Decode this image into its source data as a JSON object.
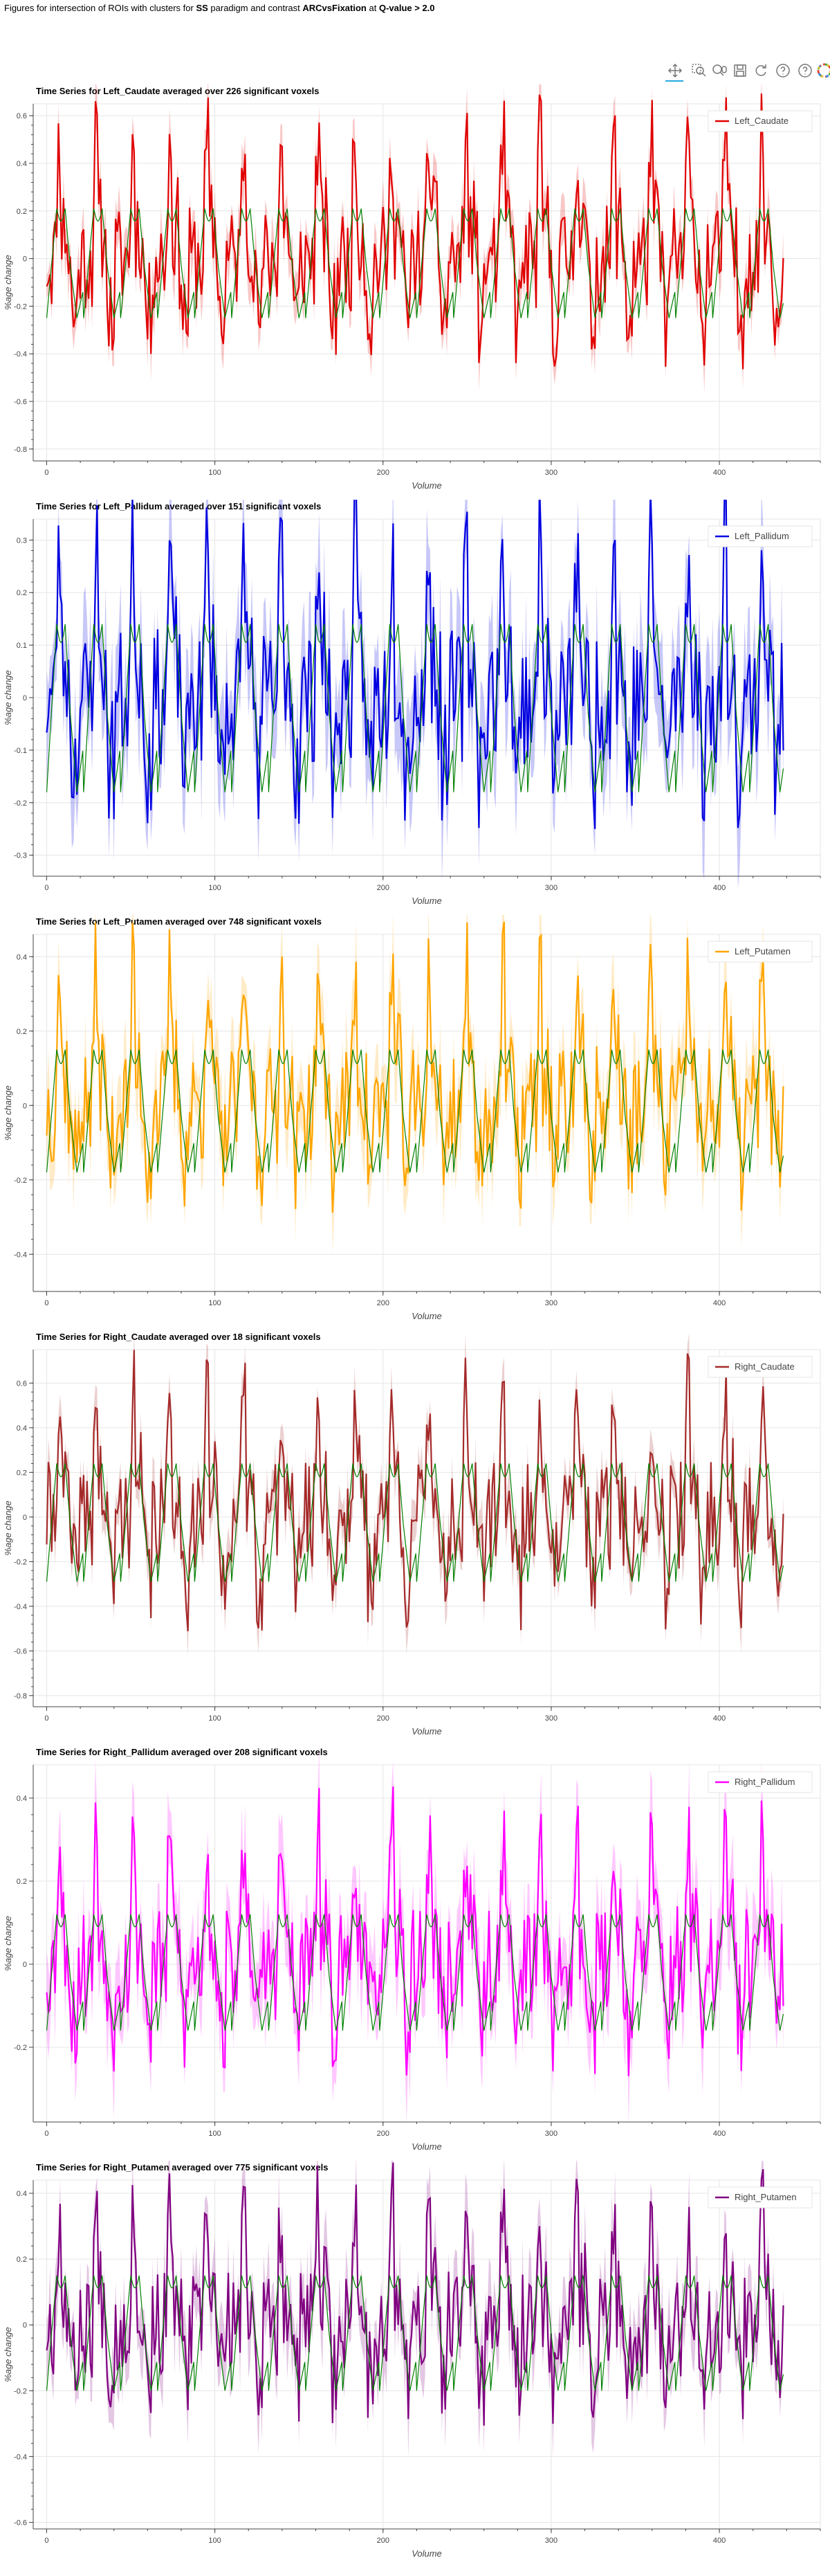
{
  "header": {
    "prefix": "Figures for intersection of ROIs with clusters for",
    "paradigm": "SS",
    "middle": "paradigm and contrast",
    "contrast": "ARCvsFixation",
    "at": "at",
    "qvalue": "Q-value > 2.0"
  },
  "toolbar": {
    "icons": [
      "pan-icon",
      "box-zoom-icon",
      "wheel-zoom-icon",
      "save-icon",
      "reset-icon",
      "help-icon",
      "help-icon",
      "bokeh-logo-icon"
    ]
  },
  "model_color": "#008000",
  "chart_data": [
    {
      "type": "line",
      "title": "Time Series for Left_Caudate averaged over 226 significant voxels",
      "xlabel": "Volume",
      "ylabel": "%age change",
      "xlim": [
        -8,
        460
      ],
      "ylim": [
        -0.85,
        0.65
      ],
      "xticks": [
        0,
        100,
        200,
        300,
        400
      ],
      "yticks": [
        -0.8,
        -0.6,
        -0.4,
        -0.2,
        0,
        0.2,
        0.4,
        0.6
      ],
      "legend": "top-right",
      "grid": true,
      "color": "#e00000",
      "series": [
        {
          "name": "Left_Caudate",
          "x_range": [
            0,
            438
          ],
          "amplitude": 0.5,
          "min": -0.4,
          "seed": 11
        }
      ],
      "model": {
        "x_range": [
          0,
          438
        ],
        "peak": 0.21,
        "trough": -0.25
      }
    },
    {
      "type": "line",
      "title": "Time Series for Left_Pallidum averaged over 151 significant voxels",
      "xlabel": "Volume",
      "ylabel": "%age change",
      "xlim": [
        -8,
        460
      ],
      "ylim": [
        -0.34,
        0.34
      ],
      "xticks": [
        0,
        100,
        200,
        300,
        400
      ],
      "yticks": [
        -0.3,
        -0.2,
        -0.1,
        0,
        0.1,
        0.2,
        0.3
      ],
      "legend": "top-right",
      "grid": true,
      "color": "#0000e0",
      "series": [
        {
          "name": "Left_Pallidum",
          "x_range": [
            0,
            438
          ],
          "amplitude": 0.29,
          "min": -0.2,
          "seed": 23
        }
      ],
      "model": {
        "x_range": [
          0,
          438
        ],
        "peak": 0.14,
        "trough": -0.18
      }
    },
    {
      "type": "line",
      "title": "Time Series for Left_Putamen averaged over 748 significant voxels",
      "xlabel": "Volume",
      "ylabel": "%age change",
      "xlim": [
        -8,
        460
      ],
      "ylim": [
        -0.5,
        0.46
      ],
      "xticks": [
        0,
        100,
        200,
        300,
        400
      ],
      "yticks": [
        -0.4,
        -0.2,
        0,
        0.2,
        0.4
      ],
      "legend": "top-right",
      "grid": true,
      "color": "#ffa500",
      "series": [
        {
          "name": "Left_Putamen",
          "x_range": [
            0,
            438
          ],
          "amplitude": 0.36,
          "min": -0.22,
          "seed": 37
        }
      ],
      "model": {
        "x_range": [
          0,
          438
        ],
        "peak": 0.15,
        "trough": -0.18
      }
    },
    {
      "type": "line",
      "title": "Time Series for Right_Caudate averaged over 18 significant voxels",
      "xlabel": "Volume",
      "ylabel": "%age change",
      "xlim": [
        -8,
        460
      ],
      "ylim": [
        -0.85,
        0.75
      ],
      "xticks": [
        0,
        100,
        200,
        300,
        400
      ],
      "yticks": [
        -0.8,
        -0.6,
        -0.4,
        -0.2,
        0,
        0.2,
        0.4,
        0.6
      ],
      "legend": "top-right",
      "grid": true,
      "color": "#a52a2a",
      "series": [
        {
          "name": "Right_Caudate",
          "x_range": [
            0,
            438
          ],
          "amplitude": 0.55,
          "min": -0.45,
          "seed": 41
        }
      ],
      "model": {
        "x_range": [
          0,
          438
        ],
        "peak": 0.24,
        "trough": -0.29
      }
    },
    {
      "type": "line",
      "title": "Time Series for Right_Pallidum averaged over 208 significant voxels",
      "xlabel": "Volume",
      "ylabel": "%age change",
      "xlim": [
        -8,
        460
      ],
      "ylim": [
        -0.38,
        0.48
      ],
      "xticks": [
        0,
        100,
        200,
        300,
        400
      ],
      "yticks": [
        -0.2,
        0,
        0.2,
        0.4
      ],
      "legend": "top-right",
      "grid": true,
      "color": "#ff00ff",
      "series": [
        {
          "name": "Right_Pallidum",
          "x_range": [
            0,
            438
          ],
          "amplitude": 0.31,
          "min": -0.22,
          "seed": 53
        }
      ],
      "model": {
        "x_range": [
          0,
          438
        ],
        "peak": 0.12,
        "trough": -0.16
      }
    },
    {
      "type": "line",
      "title": "Time Series for Right_Putamen averaged over 775 significant voxels",
      "xlabel": "Volume",
      "ylabel": "%age change",
      "xlim": [
        -8,
        460
      ],
      "ylim": [
        -0.62,
        0.44
      ],
      "xticks": [
        0,
        100,
        200,
        300,
        400
      ],
      "yticks": [
        -0.6,
        -0.4,
        -0.2,
        0,
        0.2,
        0.4
      ],
      "legend": "top-right",
      "grid": true,
      "color": "#800080",
      "series": [
        {
          "name": "Right_Putamen",
          "x_range": [
            0,
            438
          ],
          "amplitude": 0.36,
          "min": -0.24,
          "seed": 67
        }
      ],
      "model": {
        "x_range": [
          0,
          438
        ],
        "peak": 0.15,
        "trough": -0.2
      }
    }
  ]
}
